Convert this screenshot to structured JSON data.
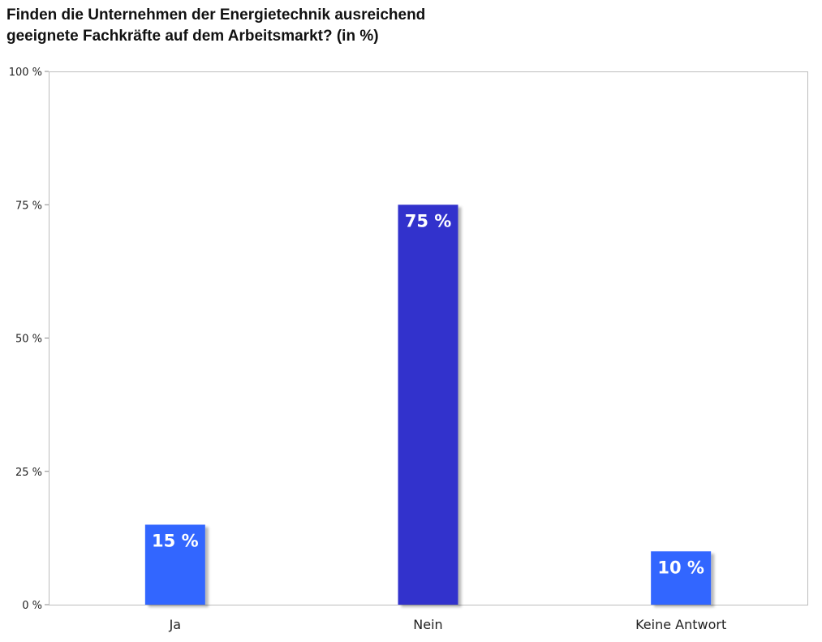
{
  "chart_data": {
    "type": "bar",
    "title_lines": [
      "Finden die Unternehmen der Energietechnik ausreichend",
      "geeignete Fachkräfte auf dem Arbeitsmarkt? (in %)"
    ],
    "categories": [
      "Ja",
      "Nein",
      "Keine Antwort"
    ],
    "values": [
      15,
      75,
      10
    ],
    "data_labels": [
      "15 %",
      "75 %",
      "10 %"
    ],
    "bar_colors": [
      "#3366ff",
      "#3333cc",
      "#3366ff"
    ],
    "yticks": [
      0,
      25,
      50,
      75,
      100
    ],
    "ytick_labels": [
      "0 %",
      "25 %",
      "50 %",
      "75 %",
      "100 %"
    ],
    "ylim": [
      0,
      100
    ],
    "grid": false,
    "legend": "none",
    "xlabel": "",
    "ylabel": ""
  }
}
